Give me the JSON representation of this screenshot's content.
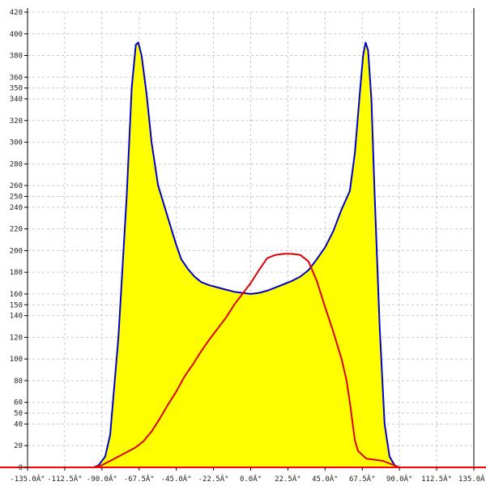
{
  "chart_data": {
    "type": "area",
    "title": "",
    "xlabel": "",
    "ylabel": "",
    "xlim": [
      -135,
      135
    ],
    "ylim": [
      0,
      420
    ],
    "grid": true,
    "legend": "none",
    "x_ticks": [
      -135,
      -112.5,
      -90,
      -67.5,
      -45,
      -22.5,
      0,
      22.5,
      45,
      67.5,
      90,
      112.5,
      135
    ],
    "x_tick_labels": [
      "-135.0Â°",
      "-112.5Â°",
      "-90.0Â°",
      "-67.5Â°",
      "-45.0Â°",
      "-22.5Â°",
      "0.0Â°",
      "22.5Â°",
      "45.0Â°",
      "67.5Â°",
      "90.0Â°",
      "112.5Â°",
      "135.0Â°"
    ],
    "y_ticks": [
      0,
      20,
      40,
      50,
      60,
      80,
      100,
      120,
      140,
      150,
      160,
      180,
      200,
      220,
      240,
      250,
      260,
      280,
      300,
      320,
      340,
      350,
      360,
      380,
      400,
      420
    ],
    "y_tick_labels": [
      "0",
      "20",
      "40",
      "50",
      "60",
      "80",
      "100",
      "120",
      "140",
      "150",
      "160",
      "180",
      "200",
      "220",
      "240",
      "250",
      "260",
      "280",
      "300",
      "320",
      "340",
      "350",
      "360",
      "380",
      "400",
      "420"
    ],
    "colors": {
      "fill": "#ffff00",
      "series1_line": "#0000cc",
      "series2_line": "#dd0000",
      "grid": "#c9c9c9",
      "axis_bottom": "#ff0000"
    },
    "series": [
      {
        "style": "filled",
        "x": [
          -135,
          -95,
          -92,
          -88,
          -85,
          -80,
          -75,
          -72,
          -69.5,
          -68,
          -66,
          -63,
          -60,
          -56,
          -52,
          -48,
          -45,
          -42,
          -38,
          -34,
          -30,
          -25,
          -20,
          -15,
          -10,
          -5,
          0,
          5,
          10,
          15,
          20,
          25,
          30,
          35,
          40,
          45,
          50,
          55,
          60,
          63,
          66,
          68,
          69.5,
          71,
          73,
          75,
          78,
          81,
          84,
          87,
          89,
          92,
          95,
          135
        ],
        "y": [
          0,
          0,
          2,
          10,
          30,
          120,
          250,
          350,
          390,
          392,
          380,
          345,
          300,
          260,
          240,
          220,
          205,
          192,
          183,
          176,
          171,
          168,
          166,
          164,
          162,
          161,
          160,
          161,
          163,
          166,
          169,
          172,
          176,
          182,
          192,
          203,
          218,
          238,
          255,
          290,
          345,
          380,
          392,
          385,
          340,
          250,
          130,
          40,
          10,
          2,
          0,
          0,
          0,
          0
        ]
      },
      {
        "style": "line",
        "x": [
          -135,
          -95,
          -90,
          -85,
          -80,
          -75,
          -70,
          -65,
          -60,
          -55,
          -50,
          -45,
          -40,
          -35,
          -30,
          -25,
          -20,
          -15,
          -10,
          -5,
          0,
          5,
          10,
          15,
          20,
          25,
          30,
          35,
          40,
          45,
          50,
          55,
          58,
          60,
          63,
          65,
          70,
          75,
          80,
          85,
          90,
          135
        ],
        "y": [
          0,
          0,
          2,
          6,
          10,
          14,
          18,
          24,
          33,
          45,
          58,
          70,
          84,
          95,
          107,
          118,
          128,
          138,
          150,
          160,
          170,
          182,
          193,
          196,
          197,
          197,
          196,
          190,
          172,
          148,
          125,
          100,
          80,
          60,
          25,
          15,
          8,
          7,
          6,
          3,
          0,
          0
        ]
      }
    ]
  }
}
